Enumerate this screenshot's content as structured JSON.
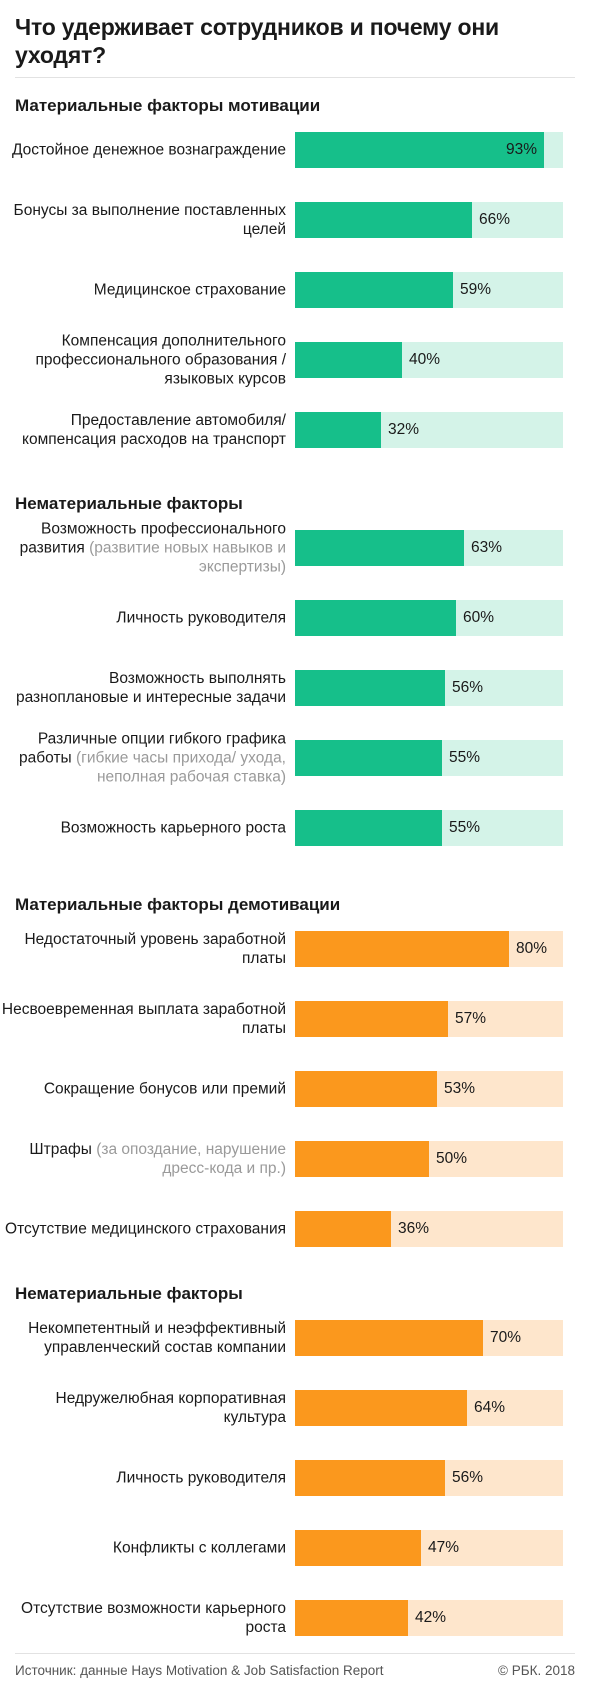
{
  "title": "Что удерживает сотрудников и почему они уходят?",
  "colors": {
    "green": "#16bf8a",
    "green_light": "#d4f3e8",
    "orange": "#fb981d",
    "orange_light": "#fee6cc"
  },
  "chart_data": {
    "type": "bar",
    "orientation": "horizontal",
    "unit": "%",
    "xlim": [
      0,
      100
    ],
    "groups": [
      {
        "title": "Материальные факторы мотивации",
        "color": "green",
        "items": [
          {
            "label": "Достойное денежное вознаграждение",
            "note": "",
            "value": 93
          },
          {
            "label": "Бонусы за выполнение поставленных целей",
            "note": "",
            "value": 66
          },
          {
            "label": "Медицинское страхование",
            "note": "",
            "value": 59
          },
          {
            "label": "Компенсация дополнительного профессионального образования /языковых курсов",
            "note": "",
            "value": 40
          },
          {
            "label": "Предоставление автомобиля/ компенсация расходов на транспорт",
            "note": "",
            "value": 32
          }
        ]
      },
      {
        "title": "Нематериальные факторы",
        "color": "green",
        "items": [
          {
            "label": "Возможность профессионального развития",
            "note": "(развитие новых навыков и экспертизы)",
            "value": 63
          },
          {
            "label": "Личность руководителя",
            "note": "",
            "value": 60
          },
          {
            "label": "Возможность выполнять разноплановые и интересные задачи",
            "note": "",
            "value": 56
          },
          {
            "label": "Различные опции гибкого графика работы",
            "note": "(гибкие часы прихода/ ухода, неполная рабочая ставка)",
            "value": 55
          },
          {
            "label": "Возможность карьерного роста",
            "note": "",
            "value": 55
          }
        ]
      },
      {
        "title": "Материальные факторы демотивации",
        "color": "orange",
        "items": [
          {
            "label": "Недостаточный уровень заработной платы",
            "note": "",
            "value": 80
          },
          {
            "label": "Несвоевременная выплата заработной платы",
            "note": "",
            "value": 57
          },
          {
            "label": "Сокращение бонусов или премий",
            "note": "",
            "value": 53
          },
          {
            "label": "Штрафы",
            "note": "(за опоздание, нарушение дресс-кода и пр.)",
            "value": 50
          },
          {
            "label": "Отсутствие медицинского страхования",
            "note": "",
            "value": 36
          }
        ]
      },
      {
        "title": "Нематериальные факторы",
        "color": "orange",
        "items": [
          {
            "label": "Некомпетентный и неэффективный управленческий состав компании",
            "note": "",
            "value": 70
          },
          {
            "label": "Недружелюбная корпоративная культура",
            "note": "",
            "value": 64
          },
          {
            "label": "Личность руководителя",
            "note": "",
            "value": 56
          },
          {
            "label": "Конфликты с коллегами",
            "note": "",
            "value": 47
          },
          {
            "label": "Отсутствие возможности карьерного роста",
            "note": "",
            "value": 42
          }
        ]
      }
    ]
  },
  "footer": {
    "source": "Источник: данные Hays Motivation & Job Satisfaction Report",
    "copyright": "© РБК. 2018"
  }
}
